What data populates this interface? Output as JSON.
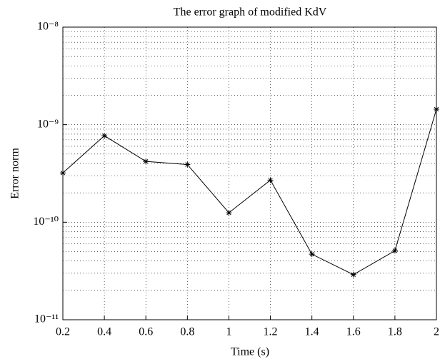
{
  "chart_data": {
    "type": "line",
    "title": "The error graph of modified KdV",
    "xlabel": "Time (s)",
    "ylabel": "Error norm",
    "x": [
      0.2,
      0.4,
      0.6,
      0.8,
      1,
      1.2,
      1.4,
      1.6,
      1.8,
      2
    ],
    "series": [
      {
        "color": "#000000",
        "marker": "asterisk",
        "values": [
          3.2e-10,
          7.7e-10,
          4.2e-10,
          3.9e-10,
          1.25e-10,
          2.7e-10,
          4.7e-11,
          2.9e-11,
          5.1e-11,
          1.44e-09
        ]
      }
    ],
    "xlim": [
      0.2,
      2
    ],
    "xticks": [
      0.2,
      0.4,
      0.6,
      0.8,
      1,
      1.2,
      1.4,
      1.6,
      1.8,
      2
    ],
    "ylim": [
      1e-11,
      1e-08
    ],
    "ylog": true,
    "yticks": [
      {
        "value": 1e-11,
        "label": "10⁻¹¹"
      },
      {
        "value": 1e-10,
        "label": "10⁻¹⁰"
      },
      {
        "value": 1e-09,
        "label": "10⁻⁹"
      },
      {
        "value": 1e-08,
        "label": "10⁻⁸"
      }
    ],
    "grid": true,
    "minor_grid": true
  }
}
